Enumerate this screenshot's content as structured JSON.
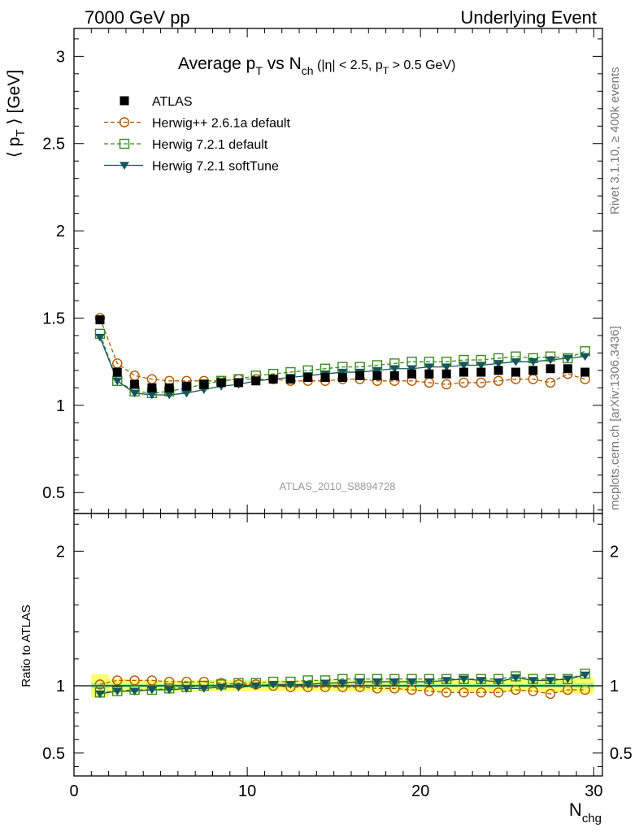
{
  "header": {
    "left": "7000 GeV pp",
    "right": "Underlying Event"
  },
  "side": {
    "rivet": "Rivet 3.1.10, ≥ 400k events",
    "mcplots": "mcplots.cern.ch [arXiv:1306.3436]"
  },
  "chart_data": {
    "type": "scatter",
    "title": {
      "main": "Average p",
      "main_sub": "T",
      "vs": " vs N",
      "vs_sub": "ch",
      "cut1": " (|η| < 2.5, p",
      "cut_sub": "T",
      "cut2": " > 0.5 GeV)"
    },
    "ylabel": {
      "left": "⟨ p",
      "sub": "T",
      "right": " ⟩ [GeV]"
    },
    "xlabel": {
      "main": "N",
      "sub": "chg"
    },
    "ratio_ylabel": "Ratio to ATLAS",
    "watermark": "ATLAS_2010_S8894728",
    "xlim": [
      0,
      30.5
    ],
    "ylim": [
      0.38,
      3.16
    ],
    "ratio_ylim": [
      0.33,
      2.28
    ],
    "xticks": [
      0,
      10,
      20,
      30
    ],
    "yticks": [
      0.5,
      1,
      1.5,
      2,
      2.5,
      3
    ],
    "yticklabels": [
      "0.5",
      "1",
      "1.5",
      "2",
      "2.5",
      "3"
    ],
    "ratio_yticks": [
      0.5,
      1,
      2
    ],
    "ratio_yticklabels": [
      "0.5",
      "1",
      "2"
    ],
    "x": [
      1.5,
      2.5,
      3.5,
      4.5,
      5.5,
      6.5,
      7.5,
      8.5,
      9.5,
      10.5,
      11.5,
      12.5,
      13.5,
      14.5,
      15.5,
      16.5,
      17.5,
      18.5,
      19.5,
      20.5,
      21.5,
      22.5,
      23.5,
      24.5,
      25.5,
      26.5,
      27.5,
      28.5,
      29.5
    ],
    "legend": [
      "ATLAS",
      "Herwig++ 2.6.1a default",
      "Herwig 7.2.1 default",
      "Herwig 7.2.1 softTune"
    ],
    "series": [
      {
        "name": "ATLAS",
        "color": "#000000",
        "values": [
          1.49,
          1.19,
          1.12,
          1.1,
          1.1,
          1.11,
          1.12,
          1.13,
          1.13,
          1.14,
          1.15,
          1.15,
          1.16,
          1.16,
          1.16,
          1.17,
          1.17,
          1.17,
          1.18,
          1.18,
          1.18,
          1.19,
          1.19,
          1.2,
          1.19,
          1.2,
          1.21,
          1.21,
          1.19
        ],
        "ratio": [
          1.0,
          1.0,
          1.0,
          1.0,
          1.0,
          1.0,
          1.0,
          1.0,
          1.0,
          1.0,
          1.0,
          1.0,
          1.0,
          1.0,
          1.0,
          1.0,
          1.0,
          1.0,
          1.0,
          1.0,
          1.0,
          1.0,
          1.0,
          1.0,
          1.0,
          1.0,
          1.0,
          1.0,
          1.0
        ]
      },
      {
        "name": "Herwig++ 2.6.1a default",
        "color": "#b35900",
        "values": [
          1.5,
          1.24,
          1.17,
          1.15,
          1.14,
          1.14,
          1.14,
          1.14,
          1.15,
          1.15,
          1.15,
          1.14,
          1.14,
          1.14,
          1.15,
          1.15,
          1.14,
          1.14,
          1.14,
          1.13,
          1.12,
          1.13,
          1.13,
          1.14,
          1.15,
          1.15,
          1.13,
          1.18,
          1.15
        ],
        "ratio": [
          1.01,
          1.04,
          1.04,
          1.04,
          1.03,
          1.03,
          1.03,
          1.02,
          1.01,
          1.01,
          1.0,
          0.99,
          0.99,
          0.99,
          0.99,
          0.99,
          0.98,
          0.98,
          0.97,
          0.96,
          0.95,
          0.95,
          0.95,
          0.95,
          0.97,
          0.96,
          0.94,
          0.97,
          0.97
        ]
      },
      {
        "name": "Herwig 7.2.1 default",
        "color": "#3d8c1f",
        "values": [
          1.41,
          1.14,
          1.08,
          1.07,
          1.08,
          1.1,
          1.12,
          1.14,
          1.15,
          1.17,
          1.18,
          1.19,
          1.2,
          1.21,
          1.22,
          1.22,
          1.23,
          1.24,
          1.25,
          1.25,
          1.25,
          1.26,
          1.26,
          1.27,
          1.28,
          1.27,
          1.28,
          1.27,
          1.31
        ],
        "ratio": [
          0.95,
          0.96,
          0.97,
          0.97,
          0.98,
          0.99,
          1.0,
          1.01,
          1.02,
          1.02,
          1.03,
          1.03,
          1.04,
          1.04,
          1.05,
          1.05,
          1.05,
          1.05,
          1.05,
          1.05,
          1.05,
          1.05,
          1.05,
          1.05,
          1.07,
          1.05,
          1.05,
          1.05,
          1.09
        ]
      },
      {
        "name": "Herwig 7.2.1 softTune",
        "color": "#155560",
        "values": [
          1.39,
          1.14,
          1.07,
          1.06,
          1.06,
          1.07,
          1.09,
          1.11,
          1.12,
          1.14,
          1.15,
          1.16,
          1.17,
          1.18,
          1.19,
          1.19,
          1.2,
          1.21,
          1.21,
          1.22,
          1.22,
          1.23,
          1.23,
          1.24,
          1.25,
          1.25,
          1.26,
          1.27,
          1.28
        ],
        "ratio": [
          0.94,
          0.96,
          0.96,
          0.97,
          0.97,
          0.98,
          0.98,
          0.99,
          0.99,
          1.0,
          1.01,
          1.01,
          1.01,
          1.02,
          1.02,
          1.03,
          1.03,
          1.03,
          1.03,
          1.03,
          1.04,
          1.05,
          1.04,
          1.03,
          1.06,
          1.04,
          1.04,
          1.05,
          1.08
        ]
      }
    ],
    "uncertainty": {
      "outer_color": "#ffff66",
      "inner_color": "#99ff99",
      "outer": [
        0.085,
        0.055,
        0.045,
        0.04,
        0.04,
        0.04,
        0.04,
        0.04,
        0.04,
        0.04,
        0.04,
        0.04,
        0.04,
        0.04,
        0.04,
        0.04,
        0.04,
        0.04,
        0.04,
        0.04,
        0.04,
        0.04,
        0.045,
        0.045,
        0.045,
        0.045,
        0.05,
        0.055,
        0.06
      ],
      "inner": [
        0.02,
        0.012,
        0.012,
        0.012,
        0.012,
        0.012,
        0.012,
        0.012,
        0.012,
        0.012,
        0.012,
        0.012,
        0.012,
        0.012,
        0.012,
        0.012,
        0.012,
        0.012,
        0.012,
        0.012,
        0.012,
        0.012,
        0.012,
        0.012,
        0.012,
        0.012,
        0.015,
        0.015,
        0.02
      ]
    }
  }
}
